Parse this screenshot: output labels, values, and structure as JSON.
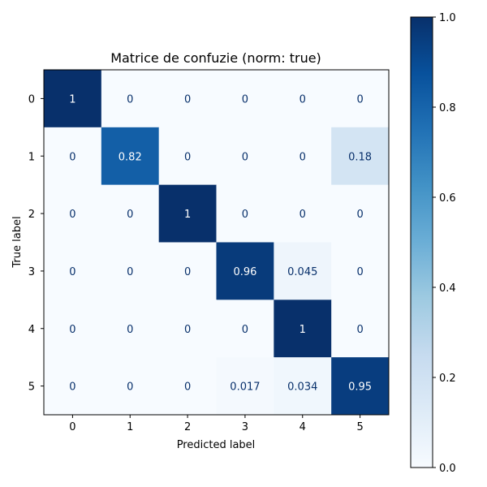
{
  "chart_data": {
    "type": "heatmap",
    "title": "Matrice de confuzie (norm: true)",
    "xlabel": "Predicted label",
    "ylabel": "True label",
    "x_categories": [
      "0",
      "1",
      "2",
      "3",
      "4",
      "5"
    ],
    "y_categories": [
      "0",
      "1",
      "2",
      "3",
      "4",
      "5"
    ],
    "values": [
      [
        1,
        0,
        0,
        0,
        0,
        0
      ],
      [
        0,
        0.82,
        0,
        0,
        0,
        0.18
      ],
      [
        0,
        0,
        1,
        0,
        0,
        0
      ],
      [
        0,
        0,
        0,
        0.96,
        0.045,
        0
      ],
      [
        0,
        0,
        0,
        0,
        1,
        0
      ],
      [
        0,
        0,
        0,
        0.017,
        0.034,
        0.95
      ]
    ],
    "cell_labels": [
      [
        "1",
        "0",
        "0",
        "0",
        "0",
        "0"
      ],
      [
        "0",
        "0.82",
        "0",
        "0",
        "0",
        "0.18"
      ],
      [
        "0",
        "0",
        "1",
        "0",
        "0",
        "0"
      ],
      [
        "0",
        "0",
        "0",
        "0.96",
        "0.045",
        "0"
      ],
      [
        "0",
        "0",
        "0",
        "0",
        "1",
        "0"
      ],
      [
        "0",
        "0",
        "0",
        "0.017",
        "0.034",
        "0.95"
      ]
    ],
    "colormap": "Blues",
    "colorbar": {
      "range": [
        0,
        1
      ],
      "ticks": [
        "0.0",
        "0.2",
        "0.4",
        "0.6",
        "0.8",
        "1.0"
      ]
    },
    "grid": false
  }
}
